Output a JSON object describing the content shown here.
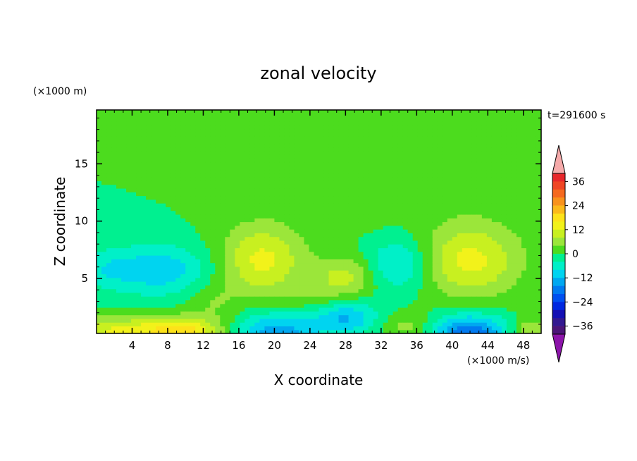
{
  "chart_data": {
    "type": "heatmap",
    "title": "zonal velocity",
    "xlabel": "X coordinate",
    "ylabel": "Z coordinate",
    "x_unit": "(×1000 m/s)",
    "y_unit": "(×1000 m)",
    "time_label": "t=291600 s",
    "xlim": [
      0,
      50
    ],
    "ylim": [
      0.2,
      19.7
    ],
    "x_ticks": [
      4,
      8,
      12,
      16,
      20,
      24,
      28,
      32,
      36,
      40,
      44,
      48
    ],
    "y_ticks": [
      5,
      10,
      15
    ],
    "colorbar": {
      "tick_values": [
        36,
        24,
        12,
        0,
        -12,
        -24,
        -36
      ],
      "tick_labels": [
        "36",
        "24",
        "12",
        "0",
        "−12",
        "−24",
        "−36"
      ],
      "levels": [
        {
          "min": 36,
          "max": 40,
          "color": "#e8262a"
        },
        {
          "min": 32,
          "max": 36,
          "color": "#f04524"
        },
        {
          "min": 28,
          "max": 32,
          "color": "#f5691f"
        },
        {
          "min": 24,
          "max": 28,
          "color": "#f8921c"
        },
        {
          "min": 20,
          "max": 24,
          "color": "#fbb91a"
        },
        {
          "min": 16,
          "max": 20,
          "color": "#fde21a"
        },
        {
          "min": 12,
          "max": 16,
          "color": "#f2f21a"
        },
        {
          "min": 8,
          "max": 12,
          "color": "#c8f020"
        },
        {
          "min": 4,
          "max": 8,
          "color": "#9be63a"
        },
        {
          "min": 0,
          "max": 4,
          "color": "#4cdc1e"
        },
        {
          "min": -4,
          "max": 0,
          "color": "#00f090"
        },
        {
          "min": -8,
          "max": -4,
          "color": "#00f0c8"
        },
        {
          "min": -12,
          "max": -8,
          "color": "#00d4f0"
        },
        {
          "min": -16,
          "max": -12,
          "color": "#00a8f0"
        },
        {
          "min": -20,
          "max": -16,
          "color": "#007af0"
        },
        {
          "min": -24,
          "max": -20,
          "color": "#0050f0"
        },
        {
          "min": -28,
          "max": -24,
          "color": "#0028e0"
        },
        {
          "min": -32,
          "max": -28,
          "color": "#1410b4"
        },
        {
          "min": -36,
          "max": -32,
          "color": "#321890"
        },
        {
          "min": -40,
          "max": -36,
          "color": "#4b1478"
        }
      ],
      "over_color": "#f5aaaa",
      "under_color": "#8c14aa"
    },
    "field": {
      "background": 0,
      "features": [
        {
          "x": 20,
          "z": 16,
          "sx": 3.0,
          "sz": 3.0,
          "v": 2
        },
        {
          "x": 30,
          "z": 11.5,
          "sx": 2.5,
          "sz": 1.6,
          "v": 2
        },
        {
          "x": 40,
          "z": 15,
          "sx": 3.2,
          "sz": 4.0,
          "v": 2
        },
        {
          "x": 45,
          "z": 10,
          "sx": 4.0,
          "sz": 2.0,
          "v": 1
        },
        {
          "x": 46,
          "z": 19,
          "sx": 4.5,
          "sz": 2.0,
          "v": 2
        },
        {
          "x": 20,
          "z": 8,
          "sx": 5.0,
          "sz": 2.2,
          "v": 1.5
        },
        {
          "x": 7,
          "z": 5.8,
          "sx": 4.0,
          "sz": 1.6,
          "v": -11
        },
        {
          "x": 1,
          "z": 5.8,
          "sx": 2.0,
          "sz": 1.2,
          "v": -5
        },
        {
          "x": 34,
          "z": 6.2,
          "sx": 2.5,
          "sz": 1.6,
          "v": -10
        },
        {
          "x": 18.5,
          "z": 6.5,
          "sx": 3.2,
          "sz": 2.2,
          "v": 12
        },
        {
          "x": 28,
          "z": 5.2,
          "sx": 2.5,
          "sz": 1.2,
          "v": 9
        },
        {
          "x": 42,
          "z": 6.5,
          "sx": 4.0,
          "sz": 2.2,
          "v": 13
        },
        {
          "x": 13,
          "z": 3.0,
          "sx": 2.0,
          "sz": 1.2,
          "v": 4
        },
        {
          "x": 5,
          "z": 0.4,
          "sx": 7.0,
          "sz": 0.9,
          "v": 14
        },
        {
          "x": 10,
          "z": 0.4,
          "sx": 2.5,
          "sz": 0.9,
          "v": 8
        },
        {
          "x": 20,
          "z": 0.3,
          "sx": 3.5,
          "sz": 1.2,
          "v": -16
        },
        {
          "x": 28,
          "z": 1.6,
          "sx": 2.5,
          "sz": 1.0,
          "v": -12
        },
        {
          "x": 42,
          "z": 0.3,
          "sx": 3.0,
          "sz": 1.1,
          "v": -20
        },
        {
          "x": 35,
          "z": 0.8,
          "sx": 2.0,
          "sz": 0.8,
          "v": 6
        },
        {
          "x": 25,
          "z": 3.5,
          "sx": 2.5,
          "sz": 1.0,
          "v": 3
        },
        {
          "x": 48.5,
          "z": 0.5,
          "sx": 1.5,
          "sz": 0.8,
          "v": 8
        }
      ]
    }
  }
}
